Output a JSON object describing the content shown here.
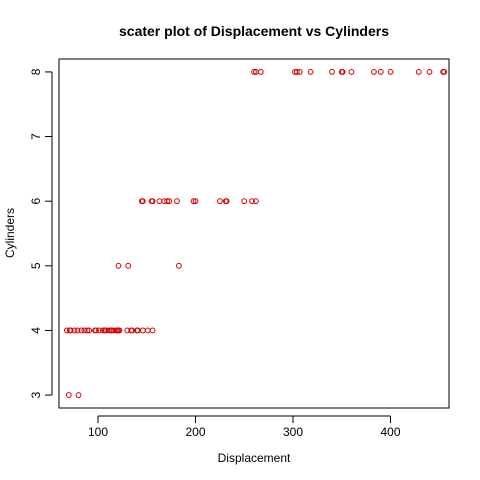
{
  "chart_data": {
    "type": "scatter",
    "title": "scater plot of Displacement vs Cylinders",
    "xlabel": "Displacement",
    "ylabel": "Cylinders",
    "xlim": [
      60,
      460
    ],
    "ylim": [
      2.8,
      8.2
    ],
    "xticks": [
      100,
      200,
      300,
      400
    ],
    "yticks": [
      3,
      4,
      5,
      6,
      7,
      8
    ],
    "grid": false,
    "legend": "none",
    "point_color": "#d40000",
    "points": [
      {
        "x": 70,
        "y": 3
      },
      {
        "x": 80,
        "y": 3
      },
      {
        "x": 68,
        "y": 4
      },
      {
        "x": 71,
        "y": 4
      },
      {
        "x": 72,
        "y": 4
      },
      {
        "x": 76,
        "y": 4
      },
      {
        "x": 79,
        "y": 4
      },
      {
        "x": 83,
        "y": 4
      },
      {
        "x": 86,
        "y": 4
      },
      {
        "x": 89,
        "y": 4
      },
      {
        "x": 91,
        "y": 4
      },
      {
        "x": 97,
        "y": 4
      },
      {
        "x": 98,
        "y": 4
      },
      {
        "x": 101,
        "y": 4
      },
      {
        "x": 105,
        "y": 4
      },
      {
        "x": 107,
        "y": 4
      },
      {
        "x": 108,
        "y": 4
      },
      {
        "x": 111,
        "y": 4
      },
      {
        "x": 113,
        "y": 4
      },
      {
        "x": 114,
        "y": 4
      },
      {
        "x": 116,
        "y": 4
      },
      {
        "x": 119,
        "y": 4
      },
      {
        "x": 120,
        "y": 4
      },
      {
        "x": 121,
        "y": 4
      },
      {
        "x": 122,
        "y": 4
      },
      {
        "x": 130,
        "y": 4
      },
      {
        "x": 134,
        "y": 4
      },
      {
        "x": 135,
        "y": 4
      },
      {
        "x": 140,
        "y": 4
      },
      {
        "x": 141,
        "y": 4
      },
      {
        "x": 146,
        "y": 4
      },
      {
        "x": 151,
        "y": 4
      },
      {
        "x": 156,
        "y": 4
      },
      {
        "x": 121,
        "y": 5
      },
      {
        "x": 131,
        "y": 5
      },
      {
        "x": 183,
        "y": 5
      },
      {
        "x": 145,
        "y": 6
      },
      {
        "x": 146,
        "y": 6
      },
      {
        "x": 155,
        "y": 6
      },
      {
        "x": 156,
        "y": 6
      },
      {
        "x": 163,
        "y": 6
      },
      {
        "x": 168,
        "y": 6
      },
      {
        "x": 171,
        "y": 6
      },
      {
        "x": 173,
        "y": 6
      },
      {
        "x": 181,
        "y": 6
      },
      {
        "x": 198,
        "y": 6
      },
      {
        "x": 200,
        "y": 6
      },
      {
        "x": 225,
        "y": 6
      },
      {
        "x": 231,
        "y": 6
      },
      {
        "x": 232,
        "y": 6
      },
      {
        "x": 250,
        "y": 6
      },
      {
        "x": 258,
        "y": 6
      },
      {
        "x": 262,
        "y": 6
      },
      {
        "x": 260,
        "y": 8
      },
      {
        "x": 262,
        "y": 8
      },
      {
        "x": 267,
        "y": 8
      },
      {
        "x": 302,
        "y": 8
      },
      {
        "x": 304,
        "y": 8
      },
      {
        "x": 307,
        "y": 8
      },
      {
        "x": 318,
        "y": 8
      },
      {
        "x": 340,
        "y": 8
      },
      {
        "x": 350,
        "y": 8
      },
      {
        "x": 351,
        "y": 8
      },
      {
        "x": 360,
        "y": 8
      },
      {
        "x": 383,
        "y": 8
      },
      {
        "x": 390,
        "y": 8
      },
      {
        "x": 400,
        "y": 8
      },
      {
        "x": 429,
        "y": 8
      },
      {
        "x": 440,
        "y": 8
      },
      {
        "x": 454,
        "y": 8
      },
      {
        "x": 455,
        "y": 8
      }
    ]
  }
}
